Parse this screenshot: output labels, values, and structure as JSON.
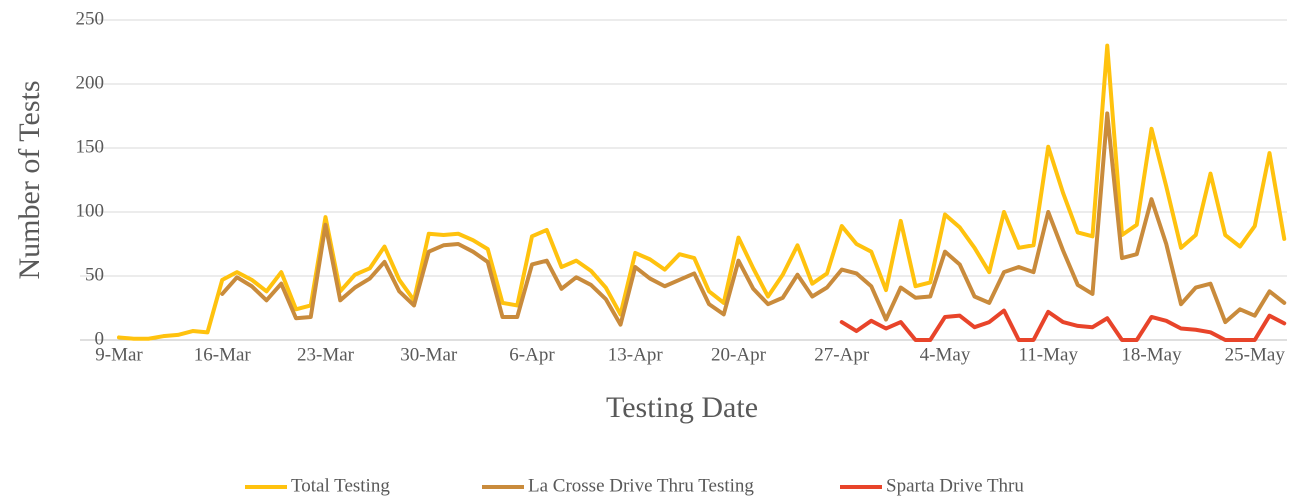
{
  "chart_data": {
    "type": "line",
    "x_label": "Testing Date",
    "y_label": "Number of Tests",
    "categories": [
      "9-Mar",
      null,
      null,
      null,
      null,
      null,
      null,
      "16-Mar",
      null,
      null,
      null,
      null,
      null,
      null,
      "23-Mar",
      null,
      null,
      null,
      null,
      null,
      null,
      "30-Mar",
      null,
      null,
      null,
      null,
      null,
      null,
      "6-Apr",
      null,
      null,
      null,
      null,
      null,
      null,
      "13-Apr",
      null,
      null,
      null,
      null,
      null,
      null,
      "20-Apr",
      null,
      null,
      null,
      null,
      null,
      null,
      "27-Apr",
      null,
      null,
      null,
      null,
      null,
      null,
      "4-May",
      null,
      null,
      null,
      null,
      null,
      null,
      "11-May",
      null,
      null,
      null,
      null,
      null,
      null,
      "18-May",
      null,
      null,
      null,
      null,
      null,
      null,
      "25-May",
      null,
      null
    ],
    "series": [
      {
        "name": "Total Testing",
        "color": "#FFC20E",
        "values": [
          2,
          1,
          1,
          3,
          4,
          7,
          6,
          47,
          53,
          47,
          38,
          53,
          24,
          27,
          96,
          38,
          51,
          56,
          73,
          47,
          31,
          83,
          82,
          83,
          78,
          71,
          29,
          27,
          81,
          86,
          57,
          62,
          54,
          41,
          20,
          68,
          63,
          55,
          67,
          64,
          38,
          29,
          80,
          56,
          34,
          51,
          74,
          44,
          52,
          89,
          75,
          69,
          39,
          93,
          42,
          45,
          98,
          88,
          72,
          53,
          100,
          72,
          74,
          151,
          115,
          84,
          81,
          230,
          82,
          90,
          165,
          120,
          72,
          82,
          130,
          82,
          73,
          89,
          146,
          79
        ]
      },
      {
        "name": "La Crosse Drive Thru Testing",
        "color": "#C98B3C",
        "values": [
          null,
          null,
          null,
          null,
          null,
          null,
          null,
          36,
          49,
          42,
          31,
          44,
          17,
          18,
          90,
          31,
          41,
          48,
          61,
          38,
          27,
          69,
          74,
          75,
          69,
          61,
          18,
          18,
          59,
          62,
          40,
          49,
          43,
          32,
          12,
          57,
          48,
          42,
          47,
          52,
          28,
          20,
          62,
          40,
          28,
          33,
          51,
          34,
          41,
          55,
          52,
          42,
          16,
          41,
          33,
          34,
          69,
          59,
          34,
          29,
          53,
          57,
          53,
          100,
          70,
          43,
          36,
          177,
          64,
          67,
          110,
          75,
          28,
          41,
          44,
          14,
          24,
          19,
          38,
          29
        ]
      },
      {
        "name": "Sparta Drive Thru",
        "color": "#E8442A",
        "values": [
          null,
          null,
          null,
          null,
          null,
          null,
          null,
          null,
          null,
          null,
          null,
          null,
          null,
          null,
          null,
          null,
          null,
          null,
          null,
          null,
          null,
          null,
          null,
          null,
          null,
          null,
          null,
          null,
          null,
          null,
          null,
          null,
          null,
          null,
          null,
          null,
          null,
          null,
          null,
          null,
          null,
          null,
          null,
          null,
          null,
          null,
          null,
          null,
          null,
          14,
          7,
          15,
          9,
          14,
          0,
          0,
          18,
          19,
          10,
          14,
          23,
          0,
          0,
          22,
          14,
          11,
          10,
          17,
          0,
          0,
          18,
          15,
          9,
          8,
          6,
          0,
          0,
          0,
          19,
          13
        ]
      }
    ],
    "ylim": [
      0,
      250
    ],
    "yticks": [
      0,
      50,
      100,
      150,
      200,
      250
    ],
    "grid": true,
    "legend": "bottom"
  }
}
